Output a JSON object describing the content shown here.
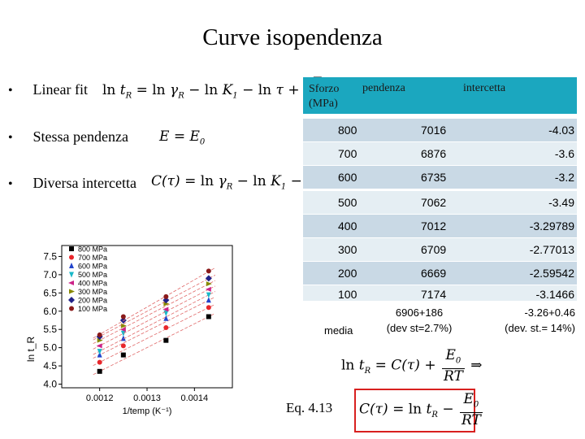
{
  "title": "Curve isopendenza",
  "bullets": [
    {
      "label": "Linear fit"
    },
    {
      "label": "Stessa pendenza"
    },
    {
      "label": "Diversa intercetta"
    }
  ],
  "bullet_symbol": "•",
  "table": {
    "headers": [
      "Sforzo (MPa)",
      "pendenza",
      "intercetta"
    ],
    "rows": [
      {
        "sforzo": "800",
        "pendenza": "7016",
        "intercetta": "-4.03"
      },
      {
        "sforzo": "700",
        "pendenza": "6876",
        "intercetta": "-3.6"
      },
      {
        "sforzo": "600",
        "pendenza": "6735",
        "intercetta": "-3.2"
      },
      {
        "sforzo": "500",
        "pendenza": "7062",
        "intercetta": "-3.49"
      },
      {
        "sforzo": "400",
        "pendenza": "7012",
        "intercetta": "-3.29789"
      },
      {
        "sforzo": "300",
        "pendenza": "6709",
        "intercetta": "-2.77013"
      },
      {
        "sforzo": "200",
        "pendenza": "6669",
        "intercetta": "-2.59542"
      },
      {
        "sforzo": "100",
        "pendenza": "7174",
        "intercetta": "-3.1466"
      }
    ],
    "media": {
      "label": "media",
      "pendenza_line1": "6906+186",
      "pendenza_line2": "(dev st=2.7%)",
      "intercetta_line1": "-3.26+0.46",
      "intercetta_line2": "(dev. st.= 14%)"
    },
    "colors": {
      "header": "#1ba7bf",
      "row_dark": "#c9d9e5",
      "row_light": "#e5eef3"
    }
  },
  "eq_label": "Eq. 4.13",
  "chart_data": {
    "type": "scatter",
    "xlabel": "1/temp (K⁻¹)",
    "ylabel": "ln t_R",
    "xlim": [
      0.00112,
      0.00148
    ],
    "ylim": [
      3.9,
      7.8
    ],
    "x_ticks": [
      "0.0012",
      "0.0013",
      "0.0014"
    ],
    "y_ticks": [
      "4.0",
      "4.5",
      "5.0",
      "5.5",
      "6.0",
      "6.5",
      "7.0",
      "7.5"
    ],
    "x": [
      0.0012,
      0.00125,
      0.00134,
      0.00143
    ],
    "series": [
      {
        "name": "800 MPa",
        "color": "#000000",
        "marker": "square",
        "values": [
          4.35,
          4.8,
          5.2,
          5.85
        ]
      },
      {
        "name": "700 MPa",
        "color": "#e8262b",
        "marker": "circle",
        "values": [
          4.6,
          5.05,
          5.55,
          6.1
        ]
      },
      {
        "name": "600 MPa",
        "color": "#2244cc",
        "marker": "triangle-up",
        "values": [
          4.8,
          5.25,
          5.8,
          6.3
        ]
      },
      {
        "name": "500 MPa",
        "color": "#19b8c8",
        "marker": "triangle-down",
        "values": [
          4.9,
          5.4,
          5.95,
          6.45
        ]
      },
      {
        "name": "400 MPa",
        "color": "#cc2288",
        "marker": "triangle-left",
        "values": [
          5.05,
          5.5,
          6.05,
          6.6
        ]
      },
      {
        "name": "300 MPa",
        "color": "#888800",
        "marker": "triangle-right",
        "values": [
          5.2,
          5.6,
          6.2,
          6.75
        ]
      },
      {
        "name": "200 MPa",
        "color": "#222288",
        "marker": "diamond",
        "values": [
          5.3,
          5.75,
          6.3,
          6.9
        ]
      },
      {
        "name": "100 MPa",
        "color": "#8b1a1a",
        "marker": "hexagon",
        "values": [
          5.35,
          5.85,
          6.4,
          7.1
        ]
      }
    ]
  }
}
